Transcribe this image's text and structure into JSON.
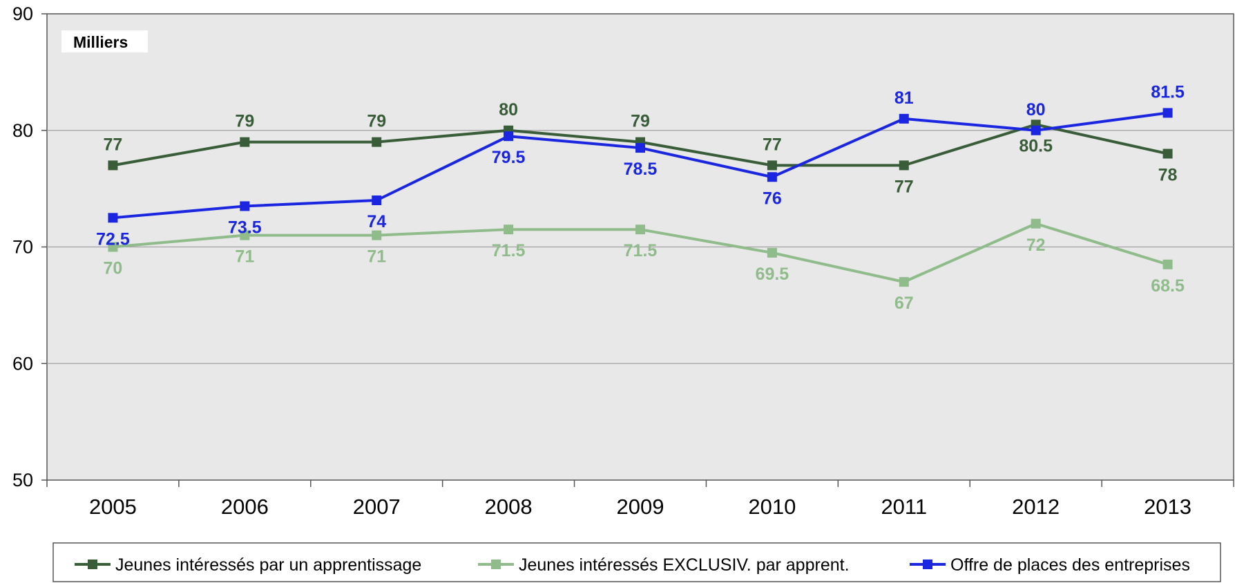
{
  "chart_data": {
    "type": "line",
    "unit_label": "Milliers",
    "categories": [
      "2005",
      "2006",
      "2007",
      "2008",
      "2009",
      "2010",
      "2011",
      "2012",
      "2013"
    ],
    "ylim": [
      50,
      90
    ],
    "yticks": [
      "50",
      "60",
      "70",
      "80",
      "90"
    ],
    "grid": true,
    "legend_position": "bottom",
    "series": [
      {
        "name": "Jeunes intéressés par un apprentissage",
        "color": "#385d38",
        "values": [
          77,
          79,
          79,
          80,
          79,
          77,
          77,
          80.5,
          78
        ],
        "labels": [
          "77",
          "79",
          "79",
          "80",
          "79",
          "77",
          "77",
          "80.5",
          "78"
        ],
        "label_side": [
          "above",
          "above",
          "above",
          "above",
          "above",
          "above",
          "below",
          "below",
          "below"
        ]
      },
      {
        "name": "Jeunes intéressés EXCLUSIV. par apprent.",
        "color": "#8fbc8a",
        "values": [
          70,
          71,
          71,
          71.5,
          71.5,
          69.5,
          67,
          72,
          68.5
        ],
        "labels": [
          "70",
          "71",
          "71",
          "71.5",
          "71.5",
          "69.5",
          "67",
          "72",
          "68.5"
        ],
        "label_side": [
          "below",
          "below",
          "below",
          "below",
          "below",
          "below",
          "below",
          "below",
          "below"
        ]
      },
      {
        "name": "Offre de places des entreprises",
        "color": "#1a26e0",
        "values": [
          72.5,
          73.5,
          74,
          79.5,
          78.5,
          76,
          81,
          80,
          81.5
        ],
        "labels": [
          "72.5",
          "73.5",
          "74",
          "79.5",
          "78.5",
          "76",
          "81",
          "80",
          "81.5"
        ],
        "label_side": [
          "below",
          "below",
          "below",
          "below",
          "below",
          "below",
          "above",
          "above",
          "above"
        ]
      }
    ]
  }
}
